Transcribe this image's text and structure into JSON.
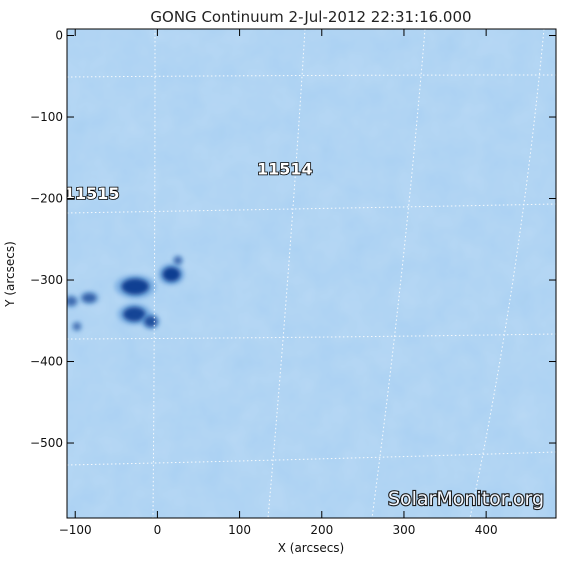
{
  "chart_data": {
    "type": "heatmap",
    "title": "GONG Continuum  2-Jul-2012 22:31:16.000",
    "xlabel": "X (arcsecs)",
    "ylabel": "Y (arcsecs)",
    "xlim": [
      -110,
      485
    ],
    "ylim": [
      -592,
      8
    ],
    "x_ticks": [
      -100,
      0,
      100,
      200,
      300,
      400
    ],
    "y_ticks": [
      0,
      -100,
      -200,
      -300,
      -400,
      -500
    ],
    "grid": "heliographic dotted grid",
    "background_color": "#a9d0f2",
    "sunspot_color": "#0b3d91",
    "active_regions": [
      {
        "label": "11515",
        "x": -80,
        "y": -195
      },
      {
        "label": "11514",
        "x": 155,
        "y": -165
      }
    ],
    "sunspots": [
      {
        "x": 17,
        "y": -293,
        "rx": 11,
        "ry": 9,
        "intensity": 1.0
      },
      {
        "x": 25,
        "y": -276,
        "rx": 5,
        "ry": 5,
        "intensity": 0.45
      },
      {
        "x": -27,
        "y": -308,
        "rx": 17,
        "ry": 10,
        "intensity": 0.95
      },
      {
        "x": -28,
        "y": -342,
        "rx": 14,
        "ry": 9,
        "intensity": 0.9
      },
      {
        "x": -8,
        "y": -351,
        "rx": 8,
        "ry": 7,
        "intensity": 0.75
      },
      {
        "x": -83,
        "y": -322,
        "rx": 9,
        "ry": 6,
        "intensity": 0.55
      },
      {
        "x": -105,
        "y": -326,
        "rx": 7,
        "ry": 6,
        "intensity": 0.45
      },
      {
        "x": -98,
        "y": -357,
        "rx": 5,
        "ry": 5,
        "intensity": 0.35
      }
    ]
  },
  "watermark": "SolarMonitor.org"
}
